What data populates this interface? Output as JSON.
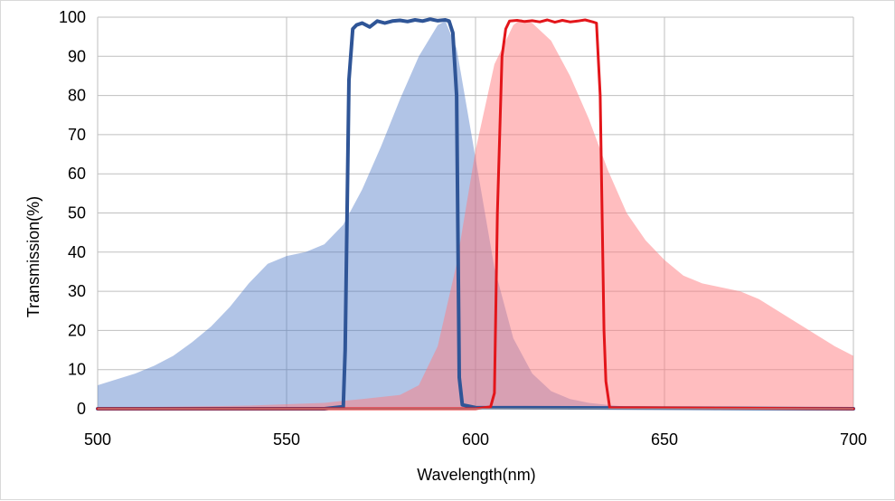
{
  "chart_data": {
    "type": "area",
    "title": "",
    "xlabel": "Wavelength(nm)",
    "ylabel": "Transmission(%)",
    "xlim": [
      500,
      700
    ],
    "ylim": [
      0,
      100
    ],
    "x_ticks": [
      500,
      550,
      600,
      650,
      700
    ],
    "y_ticks": [
      0,
      10,
      20,
      30,
      40,
      50,
      60,
      70,
      80,
      90,
      100
    ],
    "grid": true,
    "legend": "none",
    "series": [
      {
        "kind": "area",
        "color": "#4472c4",
        "opacity": 0.42,
        "x": [
          500,
          505,
          510,
          515,
          520,
          525,
          530,
          535,
          540,
          545,
          550,
          555,
          560,
          565,
          570,
          575,
          580,
          585,
          590,
          592,
          595,
          600,
          605,
          610,
          615,
          620,
          625,
          630,
          635,
          640,
          645,
          650,
          700
        ],
        "y": [
          6,
          7.5,
          9,
          11,
          13.5,
          17,
          21,
          26,
          32,
          37,
          39,
          40,
          42,
          47,
          56,
          67,
          79,
          90,
          98,
          99,
          92,
          64,
          36,
          18,
          9,
          4.5,
          2.5,
          1.5,
          1,
          0.5,
          0.3,
          0.2,
          0
        ]
      },
      {
        "kind": "area",
        "color": "#ff7c80",
        "opacity": 0.5,
        "x": [
          500,
          520,
          540,
          560,
          565,
          570,
          575,
          580,
          585,
          590,
          595,
          600,
          605,
          610,
          612,
          615,
          620,
          625,
          630,
          635,
          640,
          645,
          650,
          655,
          660,
          665,
          670,
          675,
          680,
          685,
          690,
          695,
          700
        ],
        "y": [
          0.3,
          0.5,
          0.8,
          1.5,
          2,
          2.5,
          3,
          3.5,
          6,
          16,
          37,
          66,
          88,
          98,
          99.5,
          98.5,
          94,
          85,
          74,
          61,
          50,
          43,
          38,
          34,
          32,
          31,
          30,
          28,
          25,
          22,
          19,
          16,
          13.5
        ]
      },
      {
        "kind": "line",
        "color": "#2f5597",
        "width": 4,
        "x": [
          500,
          560,
          565,
          565.5,
          566.5,
          567.5,
          568.5,
          570,
          572,
          574,
          576,
          578,
          580,
          582,
          584,
          586,
          588,
          590,
          592,
          593,
          594,
          595,
          595.7,
          596.5,
          600,
          700
        ],
        "y": [
          0,
          0,
          0.5,
          15,
          84,
          97,
          98,
          98.5,
          97.5,
          99,
          98.5,
          99,
          99.2,
          98.9,
          99.3,
          99,
          99.5,
          99.1,
          99.3,
          99,
          96,
          80,
          8,
          1,
          0.3,
          0
        ]
      },
      {
        "kind": "line",
        "color": "#e3151a",
        "width": 3,
        "x": [
          500,
          600,
          604,
          605,
          605.8,
          607,
          608,
          609,
          611,
          613,
          615,
          617,
          619,
          621,
          623,
          625,
          627,
          629,
          631,
          632,
          633,
          634,
          634.5,
          635.5,
          700
        ],
        "y": [
          0,
          0,
          0.5,
          4,
          50,
          90,
          97,
          99,
          99.2,
          98.9,
          99.1,
          98.8,
          99.3,
          98.7,
          99.2,
          98.8,
          99,
          99.3,
          98.8,
          98.5,
          80,
          20,
          7,
          0.3,
          0
        ]
      }
    ]
  }
}
